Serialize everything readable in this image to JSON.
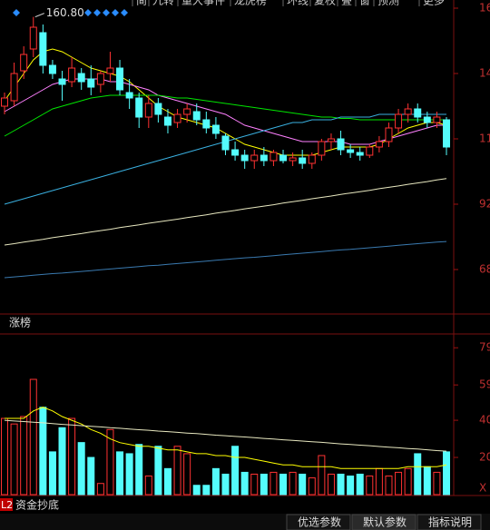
{
  "toolbar": {
    "items": [
      "简",
      "九转",
      "重大事件",
      "龙虎榜",
      "环线",
      "复权",
      "叠",
      "窗",
      "预测",
      "更多"
    ]
  },
  "chart_data": [
    {
      "type": "candlestick",
      "label": "涨榜",
      "high_label": "160.80",
      "ylim": [
        52,
        167
      ],
      "yticks": [
        {
          "value": 164,
          "label": "16"
        },
        {
          "value": 140,
          "label": "14"
        },
        {
          "value": 116,
          "label": "11"
        },
        92,
        68
      ],
      "up_color": "#ff3232",
      "down_color": "#54fcfc",
      "open": [
        128,
        130,
        141,
        149,
        155,
        143,
        138,
        137,
        140,
        138,
        136,
        140,
        142,
        133,
        131,
        124,
        129,
        124,
        122,
        125,
        126,
        123,
        121,
        117,
        112,
        110,
        108,
        110,
        108,
        110,
        108,
        109,
        107,
        110,
        115,
        116,
        112,
        111,
        110,
        113,
        115,
        120,
        125,
        127,
        124,
        122,
        123
      ],
      "high": [
        133,
        144,
        150,
        160.8,
        158,
        145,
        141,
        146,
        142,
        143,
        141,
        148,
        145,
        138,
        133,
        132,
        131,
        127,
        127,
        129,
        129,
        126,
        124,
        118,
        115,
        112,
        112,
        113,
        112,
        112,
        111,
        112,
        111,
        116,
        118,
        119,
        114,
        113,
        114,
        117,
        122,
        127,
        129,
        129,
        126,
        126,
        124
      ],
      "low": [
        125,
        128,
        138,
        146,
        140,
        138,
        130,
        135,
        134,
        132,
        133,
        137,
        132,
        127,
        120,
        120,
        122,
        118,
        120,
        122,
        121,
        118,
        116,
        110,
        108,
        105,
        105,
        106,
        106,
        107,
        106,
        105,
        105,
        108,
        112,
        110,
        109,
        108,
        109,
        111,
        113,
        118,
        122,
        122,
        120,
        120,
        110
      ],
      "close": [
        131,
        140,
        147,
        157,
        143,
        140,
        136,
        142,
        137,
        135,
        140,
        142,
        134,
        131,
        124,
        129,
        125,
        121,
        125,
        127,
        123,
        120,
        118,
        112,
        110,
        108,
        110,
        108,
        111,
        108,
        109,
        107,
        110,
        115,
        116,
        112,
        111,
        110,
        113,
        115,
        120,
        125,
        127,
        124,
        122,
        124,
        113
      ],
      "lines": [
        {
          "color": "#ffff00",
          "values": [
            130,
            135,
            140,
            145,
            148,
            149,
            148,
            146,
            144,
            142,
            141,
            140,
            139,
            137,
            134,
            131,
            128,
            126,
            124,
            123,
            122,
            121,
            120,
            118,
            116,
            114,
            113,
            112,
            111,
            110,
            110,
            110,
            110,
            111,
            112,
            113,
            113,
            113,
            113,
            114,
            116,
            118,
            120,
            121,
            122,
            122,
            121
          ]
        },
        {
          "color": "#ff80ff",
          "values": [
            126,
            128,
            130,
            132,
            134,
            136,
            137,
            138,
            138,
            138,
            138,
            137,
            137,
            136,
            135,
            134,
            132,
            131,
            130,
            129,
            128,
            127,
            126,
            125,
            123,
            121,
            120,
            119,
            118,
            117,
            116,
            115,
            115,
            115,
            115,
            115,
            114,
            114,
            114,
            115,
            116,
            117,
            118,
            119,
            120,
            121,
            121
          ]
        },
        {
          "color": "#00e600",
          "values": [
            117,
            119,
            121,
            123,
            125,
            127,
            128,
            129,
            130,
            131,
            131.5,
            132,
            132,
            132,
            132,
            132,
            132,
            131.5,
            131,
            131,
            130.5,
            130,
            129.5,
            129,
            128.5,
            128,
            127.5,
            127,
            126.5,
            126,
            125.5,
            125,
            124.5,
            124,
            124,
            123.5,
            123.5,
            123,
            123,
            123,
            123,
            123,
            123,
            123,
            123,
            123,
            123
          ]
        },
        {
          "color": "#3ab0e0",
          "values": [
            92,
            93,
            94,
            95,
            96,
            97,
            98,
            99,
            100,
            101,
            102,
            103,
            104,
            105,
            106,
            107,
            108,
            109,
            110,
            111,
            112,
            113,
            114,
            115,
            116,
            117,
            118,
            119,
            120,
            121,
            122,
            122,
            123,
            123,
            123,
            124,
            124,
            124,
            124,
            125,
            125,
            125,
            125,
            125,
            125,
            125,
            125
          ]
        },
        {
          "color": "#e8e8c0",
          "values": [
            77,
            77.5,
            78.1,
            78.6,
            79.1,
            79.7,
            80.2,
            80.7,
            81.2,
            81.8,
            82.3,
            82.8,
            83.4,
            83.9,
            84.4,
            85,
            85.5,
            86,
            86.5,
            87.1,
            87.6,
            88.1,
            88.7,
            89.2,
            89.7,
            90.3,
            90.8,
            91.3,
            91.8,
            92.4,
            92.9,
            93.4,
            94,
            94.5,
            95,
            95.6,
            96.1,
            96.6,
            97.1,
            97.7,
            98.2,
            98.7,
            99.3,
            99.8,
            100.3,
            100.9,
            101.4
          ]
        },
        {
          "color": "#3a7ab0",
          "values": [
            65,
            65.3,
            65.6,
            65.9,
            66.2,
            66.5,
            66.7,
            67,
            67.3,
            67.6,
            67.9,
            68.2,
            68.5,
            68.8,
            69.1,
            69.4,
            69.6,
            69.9,
            70.2,
            70.5,
            70.8,
            71.1,
            71.4,
            71.7,
            72,
            72.3,
            72.5,
            72.8,
            73.1,
            73.4,
            73.7,
            74,
            74.3,
            74.6,
            74.9,
            75.2,
            75.4,
            75.7,
            76,
            76.3,
            76.6,
            76.9,
            77.2,
            77.5,
            77.8,
            78.1,
            78.3
          ]
        }
      ]
    },
    {
      "type": "bar",
      "unit_label": "X",
      "ylim": [
        0,
        83
      ],
      "yticks": [
        79,
        59,
        40,
        20
      ],
      "up_color": "#ff3232",
      "down_color": "#54fcfc",
      "values": [
        41,
        38,
        42,
        62,
        47,
        23,
        36,
        41,
        28,
        20,
        6,
        35,
        23,
        22,
        27,
        10,
        26,
        14,
        26,
        22,
        5,
        5,
        14,
        11,
        26,
        12,
        11,
        11,
        12,
        11,
        12,
        11,
        9,
        21,
        11,
        11,
        10,
        11,
        10,
        14,
        10,
        12,
        14,
        22,
        15,
        12,
        23
      ],
      "lines": [
        {
          "color": "#ffff00",
          "values": [
            41,
            41,
            41,
            45,
            47,
            45,
            42,
            40,
            38,
            35,
            33,
            30,
            28,
            27,
            26,
            26,
            25,
            24,
            24,
            23,
            22,
            22,
            21,
            21,
            20,
            20,
            19,
            18,
            17,
            16,
            16,
            15,
            15,
            15,
            15,
            14,
            14,
            14,
            14,
            14,
            14,
            14,
            15,
            15,
            15,
            15,
            16
          ]
        },
        {
          "color": "#e8e8c0",
          "values": [
            40,
            39.6,
            39.3,
            38.9,
            38.6,
            38.2,
            37.8,
            37.5,
            37.1,
            36.7,
            36.4,
            36,
            35.7,
            35.3,
            34.9,
            34.6,
            34.2,
            33.9,
            33.5,
            33.1,
            32.8,
            32.4,
            32,
            31.7,
            31.3,
            31,
            30.6,
            30.2,
            29.9,
            29.5,
            29.2,
            28.8,
            28.4,
            28.1,
            27.7,
            27.3,
            27,
            26.6,
            26.3,
            25.9,
            25.5,
            25.2,
            24.8,
            24.5,
            24.1,
            23.7,
            23.4
          ]
        }
      ]
    }
  ],
  "footer": {
    "badge": "L2",
    "indicator": "资金抄底",
    "tabs": [
      "优选参数",
      "默认参数",
      "指标说明"
    ]
  }
}
